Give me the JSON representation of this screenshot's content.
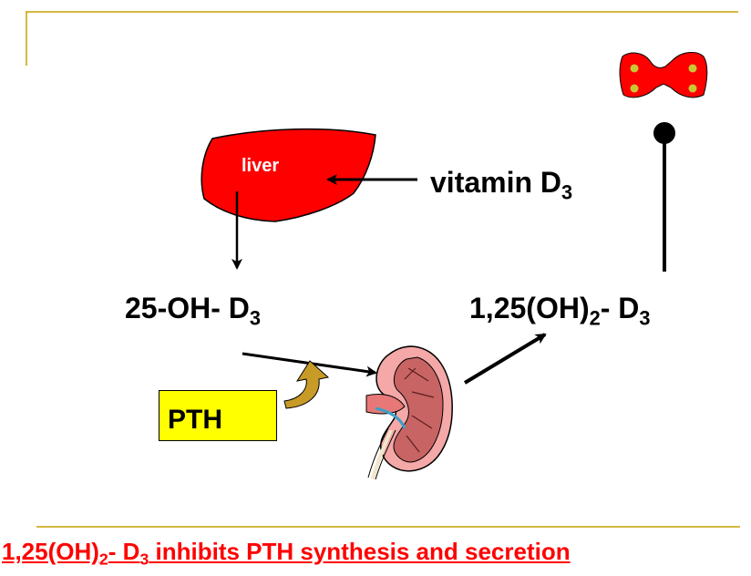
{
  "labels": {
    "liver": "liver",
    "vitamin": "vitamin D",
    "vitamin_sub": "3",
    "hydroxy_25": "25-OH- D",
    "hydroxy_25_sub": "3",
    "calcitriol_prefix": "1,25(OH)",
    "calcitriol_sub2": "2",
    "calcitriol_mid": "- D",
    "calcitriol_sub3": "3",
    "pth": "PTH"
  },
  "caption": {
    "prefix": "1,25(OH)",
    "sub2": "2",
    "mid": "- D",
    "sub3": "3",
    "rest": " inhibits PTH synthesis and secretion"
  },
  "colors": {
    "frame": "#c8a000",
    "liver": "#ff0000",
    "pth_box": "#ffff00",
    "caption": "#ff0000",
    "parathyroid": "#ff0000",
    "parathyroid_glands": "#c8c832",
    "curved_arrow": "#c89b28"
  }
}
